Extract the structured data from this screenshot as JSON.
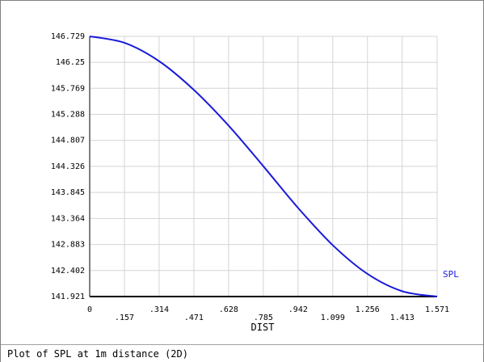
{
  "caption": "Plot of SPL at 1m distance (2D)",
  "chart_data": {
    "type": "line",
    "xlabel": "DIST",
    "ylabel": "",
    "xlim": [
      0,
      1.571
    ],
    "ylim": [
      141.921,
      146.729
    ],
    "x_ticks": [
      "0",
      ".157",
      ".314",
      ".471",
      ".628",
      ".785",
      ".942",
      "1.099",
      "1.256",
      "1.413",
      "1.571"
    ],
    "y_ticks": [
      "141.921",
      "142.402",
      "142.883",
      "143.364",
      "143.845",
      "144.326",
      "144.807",
      "145.288",
      "145.769",
      "146.25",
      "146.729"
    ],
    "grid": true,
    "legend": "right",
    "series": [
      {
        "name": "SPL",
        "color": "#1a1adb",
        "x": [
          0,
          0.157,
          0.314,
          0.471,
          0.628,
          0.785,
          0.942,
          1.099,
          1.256,
          1.413,
          1.571
        ],
        "y": [
          146.729,
          146.61,
          146.27,
          145.74,
          145.08,
          144.33,
          143.56,
          142.87,
          142.34,
          142.02,
          141.921
        ]
      }
    ]
  }
}
